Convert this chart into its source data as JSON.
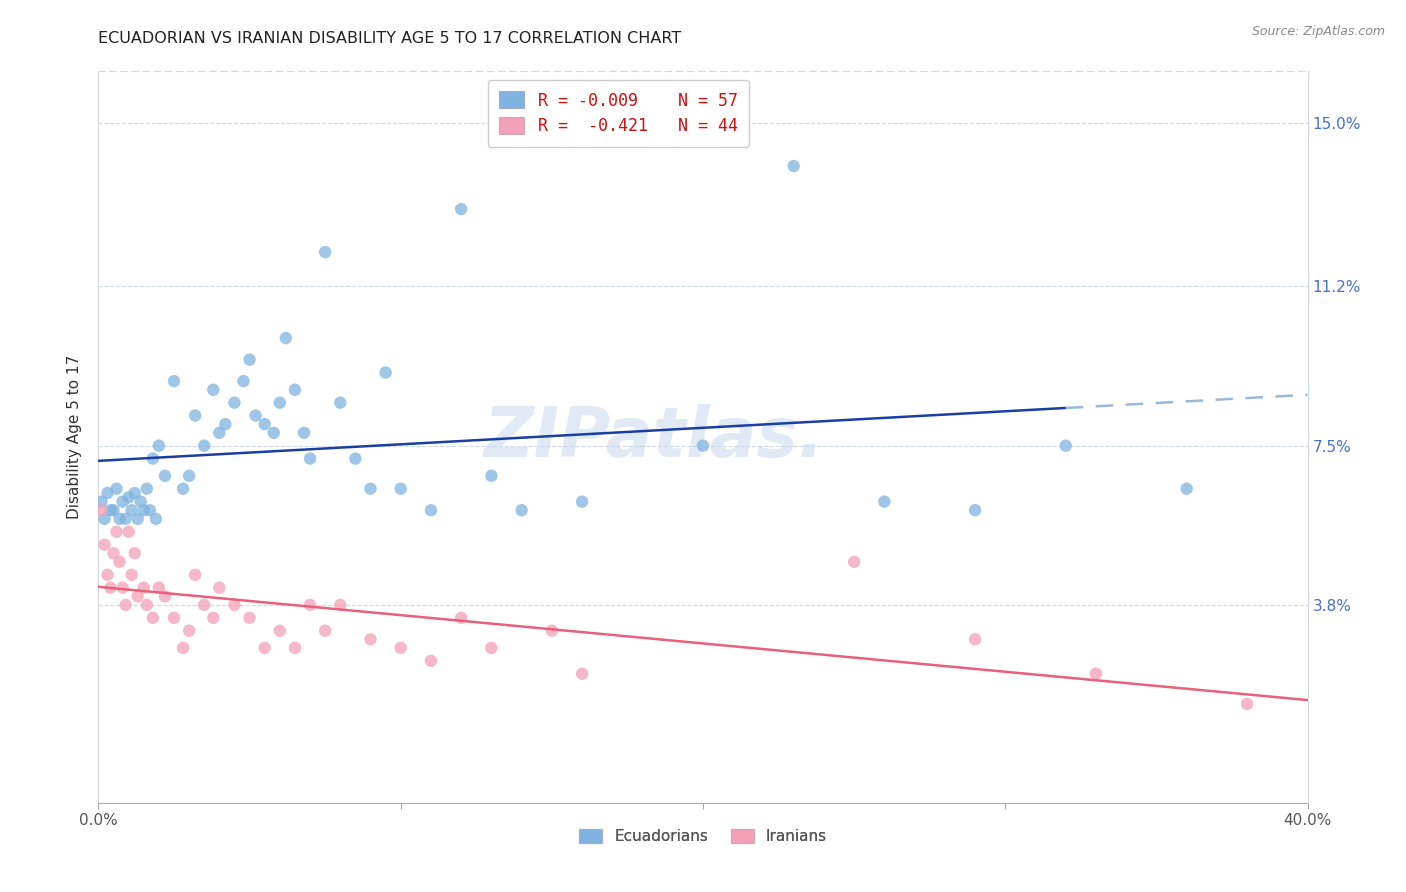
{
  "title": "ECUADORIAN VS IRANIAN DISABILITY AGE 5 TO 17 CORRELATION CHART",
  "source": "Source: ZipAtlas.com",
  "ylabel": "Disability Age 5 to 17",
  "xlim": [
    0.0,
    0.4
  ],
  "ylim": [
    -0.008,
    0.162
  ],
  "ecu_color": "#7fb3e0",
  "iran_color": "#f4a0b8",
  "ecu_line_color": "#1a3fa3",
  "iran_line_color": "#e8607a",
  "ecu_line_dash_color": "#9ab8d8",
  "ecu_R": "-0.009",
  "ecu_N": "57",
  "iran_R": "-0.421",
  "iran_N": "44",
  "legend_label_ecu": "Ecuadorians",
  "legend_label_iran": "Iranians",
  "watermark": "ZIPatlas.",
  "y_tick_positions": [
    0.0,
    0.038,
    0.075,
    0.112,
    0.15
  ],
  "y_tick_labels": [
    "",
    "3.8%",
    "7.5%",
    "11.2%",
    "15.0%"
  ],
  "x_tick_positions": [
    0.0,
    0.1,
    0.2,
    0.3,
    0.4
  ],
  "x_tick_labels": [
    "0.0%",
    "",
    "",
    "",
    "40.0%"
  ],
  "ecu_x": [
    0.001,
    0.002,
    0.003,
    0.004,
    0.005,
    0.006,
    0.007,
    0.008,
    0.009,
    0.01,
    0.011,
    0.012,
    0.013,
    0.014,
    0.015,
    0.016,
    0.017,
    0.018,
    0.019,
    0.02,
    0.022,
    0.025,
    0.028,
    0.03,
    0.032,
    0.035,
    0.038,
    0.04,
    0.042,
    0.045,
    0.048,
    0.05,
    0.052,
    0.055,
    0.058,
    0.06,
    0.062,
    0.065,
    0.068,
    0.07,
    0.075,
    0.08,
    0.085,
    0.09,
    0.095,
    0.1,
    0.11,
    0.12,
    0.13,
    0.14,
    0.16,
    0.2,
    0.23,
    0.26,
    0.29,
    0.32,
    0.36
  ],
  "ecu_y": [
    0.062,
    0.058,
    0.064,
    0.06,
    0.06,
    0.065,
    0.058,
    0.062,
    0.058,
    0.063,
    0.06,
    0.064,
    0.058,
    0.062,
    0.06,
    0.065,
    0.06,
    0.072,
    0.058,
    0.075,
    0.068,
    0.09,
    0.065,
    0.068,
    0.082,
    0.075,
    0.088,
    0.078,
    0.08,
    0.085,
    0.09,
    0.095,
    0.082,
    0.08,
    0.078,
    0.085,
    0.1,
    0.088,
    0.078,
    0.072,
    0.12,
    0.085,
    0.072,
    0.065,
    0.092,
    0.065,
    0.06,
    0.13,
    0.068,
    0.06,
    0.062,
    0.075,
    0.14,
    0.062,
    0.06,
    0.075,
    0.065
  ],
  "iran_x": [
    0.001,
    0.002,
    0.003,
    0.004,
    0.005,
    0.006,
    0.007,
    0.008,
    0.009,
    0.01,
    0.011,
    0.012,
    0.013,
    0.015,
    0.016,
    0.018,
    0.02,
    0.022,
    0.025,
    0.028,
    0.03,
    0.032,
    0.035,
    0.038,
    0.04,
    0.045,
    0.05,
    0.055,
    0.06,
    0.065,
    0.07,
    0.075,
    0.08,
    0.09,
    0.1,
    0.11,
    0.12,
    0.13,
    0.15,
    0.16,
    0.25,
    0.29,
    0.33,
    0.38
  ],
  "iran_y": [
    0.06,
    0.052,
    0.045,
    0.042,
    0.05,
    0.055,
    0.048,
    0.042,
    0.038,
    0.055,
    0.045,
    0.05,
    0.04,
    0.042,
    0.038,
    0.035,
    0.042,
    0.04,
    0.035,
    0.028,
    0.032,
    0.045,
    0.038,
    0.035,
    0.042,
    0.038,
    0.035,
    0.028,
    0.032,
    0.028,
    0.038,
    0.032,
    0.038,
    0.03,
    0.028,
    0.025,
    0.035,
    0.028,
    0.032,
    0.022,
    0.048,
    0.03,
    0.022,
    0.015
  ],
  "ecu_line_solid_end": 0.32,
  "marker_size": 80,
  "marker_alpha": 0.75
}
